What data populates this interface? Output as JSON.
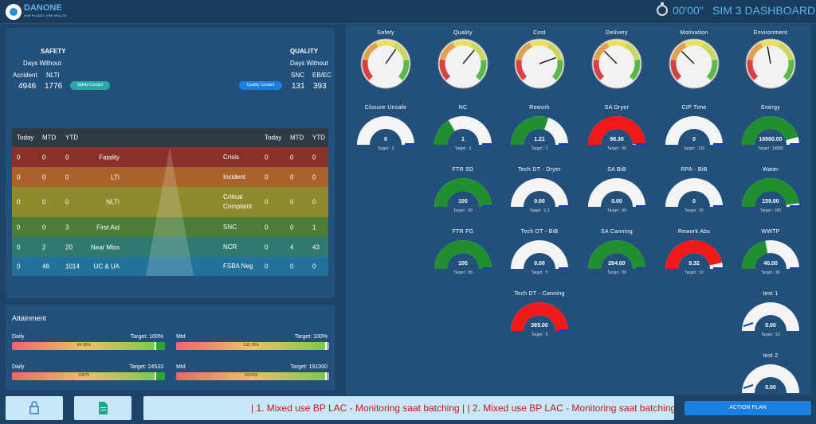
{
  "header": {
    "logo_text": "DANONE",
    "logo_sub": "ONE PLANET. ONE HEALTH",
    "timer": "00'00\"",
    "title": "SIM 3 DASHBOARD"
  },
  "safety": {
    "title": "SAFETY",
    "subtitle": "Days Without",
    "col1_label": "Accident",
    "col2_label": "NLTI",
    "col1_value": "4946",
    "col2_value": "1776",
    "button": "Safety Contact"
  },
  "quality": {
    "title": "QUALITY",
    "subtitle": "Days Without",
    "col1_label": "SNC",
    "col2_label": "EB/EC",
    "col1_value": "131",
    "col2_value": "393",
    "button": "Quality Contact"
  },
  "pyramid": {
    "headers": {
      "today": "Today",
      "mtd": "MTD",
      "ytd": "YTD"
    },
    "rows": [
      {
        "l_today": "0",
        "l_mtd": "0",
        "l_ytd": "0",
        "left": "Fatality",
        "right": "Crisis",
        "r_today": "0",
        "r_mtd": "0",
        "r_ytd": "0",
        "color": "#8b2f2a"
      },
      {
        "l_today": "0",
        "l_mtd": "0",
        "l_ytd": "0",
        "left": "LTI",
        "right": "Incident",
        "r_today": "0",
        "r_mtd": "0",
        "r_ytd": "0",
        "color": "#a9622a"
      },
      {
        "l_today": "0",
        "l_mtd": "0",
        "l_ytd": "0",
        "left": "NLTI",
        "right": "Critical Complaint",
        "r_today": "0",
        "r_mtd": "0",
        "r_ytd": "0",
        "color": "#8f8a2e"
      },
      {
        "l_today": "0",
        "l_mtd": "0",
        "l_ytd": "3",
        "left": "First Aid",
        "right": "SNC",
        "r_today": "0",
        "r_mtd": "0",
        "r_ytd": "1",
        "color": "#4c7d38"
      },
      {
        "l_today": "0",
        "l_mtd": "2",
        "l_ytd": "20",
        "left": "Near Miss",
        "right": "NCR",
        "r_today": "0",
        "r_mtd": "4",
        "r_ytd": "43",
        "color": "#2e7a70"
      },
      {
        "l_today": "0",
        "l_mtd": "46",
        "l_ytd": "1014",
        "left": "UC & UA",
        "right": "FSBA Neg",
        "r_today": "0",
        "r_mtd": "0",
        "r_ytd": "0",
        "color": "#22719a"
      }
    ]
  },
  "attainment": {
    "title": "Attainment",
    "bars": [
      {
        "label": "Daily",
        "target": "Target: 100%",
        "value": "94.05%",
        "fill": 0.94
      },
      {
        "label": "Mtd",
        "target": "Target: 100%",
        "value": "103.76%",
        "fill": 0.98
      },
      {
        "label": "Daily",
        "target": "Target: 24533",
        "value": "23075",
        "fill": 0.94
      },
      {
        "label": "Mtd",
        "target": "Target: 191000",
        "value": "202003",
        "fill": 0.98
      }
    ]
  },
  "dials": [
    {
      "label": "Safety",
      "needle": 35
    },
    {
      "label": "Quality",
      "needle": 40
    },
    {
      "label": "Cost",
      "needle": 70
    },
    {
      "label": "Delivery",
      "needle": -45
    },
    {
      "label": "Motivation",
      "needle": -45
    },
    {
      "label": "Environment",
      "needle": -10
    }
  ],
  "gauges": [
    {
      "label": "Closure Unsafe",
      "value": "0",
      "target": "Target : 2",
      "fill": 0.0,
      "color": "#1f8f2f"
    },
    {
      "label": "NC",
      "value": "1",
      "target": "Target : 3",
      "fill": 0.33,
      "color": "#1f8f2f"
    },
    {
      "label": "Rework",
      "value": "1.21",
      "target": "Target : 2",
      "fill": 0.6,
      "color": "#1f8f2f"
    },
    {
      "label": "SA Dryer",
      "value": "98.30",
      "target": "Target : 99",
      "fill": 0.99,
      "color": "#f01818"
    },
    {
      "label": "CIP Time",
      "value": "0",
      "target": "Target : 130",
      "fill": 0.0,
      "color": "#1f8f2f"
    },
    {
      "label": "Energy",
      "value": "16860.00",
      "target": "Target : 18500",
      "fill": 0.91,
      "color": "#1f8f2f"
    },
    {
      "label": "FTR SD",
      "value": "100",
      "target": "Target : 99",
      "fill": 1.0,
      "color": "#1f8f2f"
    },
    {
      "label": "Tech DT - Dryer",
      "value": "0.00",
      "target": "Target : 1.2",
      "fill": 0.0,
      "color": "#1f8f2f"
    },
    {
      "label": "SA BiB",
      "value": "0.00",
      "target": "Target : 99",
      "fill": 0.0,
      "color": "#1f8f2f"
    },
    {
      "label": "RPA - BiB",
      "value": "0",
      "target": "Target : 20",
      "fill": 0.0,
      "color": "#1f8f2f"
    },
    {
      "label": "Water",
      "value": "159.00",
      "target": "Target : 165",
      "fill": 0.96,
      "color": "#1f8f2f"
    },
    {
      "label": "FTR FG",
      "value": "100",
      "target": "Target : 99",
      "fill": 1.0,
      "color": "#1f8f2f"
    },
    {
      "label": "Tech DT - BiB",
      "value": "0.00",
      "target": "Target : 5",
      "fill": 0.0,
      "color": "#1f8f2f"
    },
    {
      "label": "SA Canning",
      "value": "264.00",
      "target": "Target : 99",
      "fill": 1.0,
      "color": "#1f8f2f"
    },
    {
      "label": "Rework Abs",
      "value": "9.32",
      "target": "Target : 10",
      "fill": 0.93,
      "color": "#f01818"
    },
    {
      "label": "WWTP",
      "value": "40.00",
      "target": "Target : 90",
      "fill": 0.44,
      "color": "#1f8f2f"
    },
    {
      "label": "Tech DT - Canning",
      "value": "365.00",
      "target": "Target : 5",
      "fill": 1.0,
      "color": "#f01818"
    },
    {
      "label": "test 1",
      "value": "0.00",
      "target": "Target : 10",
      "fill": 0.0,
      "color": "#1f8f2f"
    },
    {
      "label": "test 2",
      "value": "0.00",
      "target": "",
      "fill": 0.0,
      "color": "#1f8f2f"
    }
  ],
  "footer": {
    "ticker": "| 1. Mixed use BP LAC - Monitoring saat batching | | 2. Mixed use BP LAC - Monitoring saat batching",
    "action_button": "ACTION PLAN",
    "lock_icon": "lock-icon",
    "document_icon": "document-icon"
  }
}
